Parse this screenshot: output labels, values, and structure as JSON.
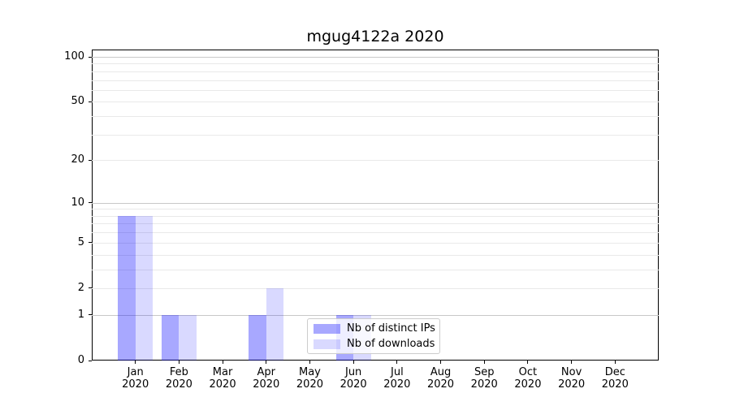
{
  "chart_data": {
    "type": "bar",
    "title": "mgug4122a 2020",
    "categories": [
      "Jan",
      "Feb",
      "Mar",
      "Apr",
      "May",
      "Jun",
      "Jul",
      "Aug",
      "Sep",
      "Oct",
      "Nov",
      "Dec"
    ],
    "category_year": "2020",
    "series": [
      {
        "name": "Nb of distinct IPs",
        "color_hex": "#a9a9f6",
        "fill_rgba": "rgba(0,0,255,0.34)",
        "values": [
          8,
          1,
          0,
          1,
          0,
          1,
          0,
          0,
          0,
          0,
          0,
          0
        ]
      },
      {
        "name": "Nb of downloads",
        "color_hex": "#d9d9f9",
        "fill_rgba": "rgba(0,0,255,0.15)",
        "values": [
          8,
          1,
          0,
          2,
          0,
          1,
          0,
          0,
          0,
          0,
          0,
          0
        ]
      }
    ],
    "yscale": "log1p",
    "ylim": [
      0,
      100
    ],
    "yticks": [
      0,
      1,
      2,
      5,
      10,
      20,
      50,
      100
    ],
    "major_gridlines": [
      1,
      10,
      100
    ],
    "minor_gridlines": [
      2,
      3,
      4,
      5,
      6,
      7,
      8,
      9,
      20,
      30,
      40,
      50,
      60,
      70,
      80,
      90
    ],
    "grid": true,
    "legend_position": "lower-center",
    "colors": {
      "axis": "#000000",
      "major_grid": "#c8c8c8",
      "minor_grid": "#e9e9e9",
      "legend_border": "#cccccc"
    }
  }
}
